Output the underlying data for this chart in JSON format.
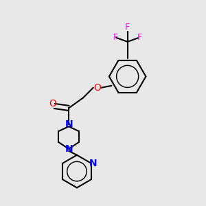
{
  "background_color": "#e8e8e8",
  "bond_color": "#000000",
  "atom_colors": {
    "O": "#ff0000",
    "N": "#0000ff",
    "F": "#ff00ff",
    "C": "#000000"
  },
  "line_width": 1.5,
  "font_size": 9
}
